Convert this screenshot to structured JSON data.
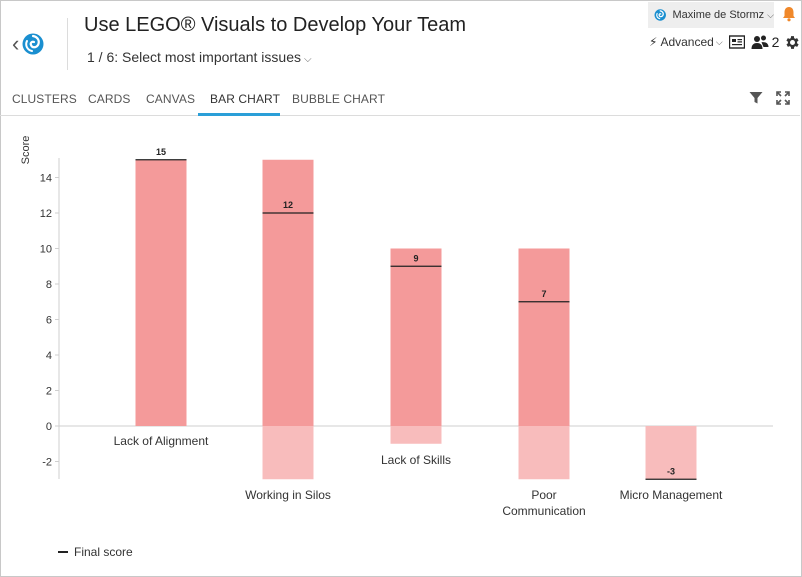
{
  "header": {
    "title": "Use LEGO® Visuals to Develop Your Team",
    "step": "1 / 6: Select most important issues",
    "user_name": "Maxime de Stormz",
    "mode": "Advanced",
    "participants": "2"
  },
  "tabs": [
    {
      "label": "CLUSTERS",
      "active": false
    },
    {
      "label": "CARDS",
      "active": false
    },
    {
      "label": "CANVAS",
      "active": false
    },
    {
      "label": "BAR CHART",
      "active": true
    },
    {
      "label": "BUBBLE CHART",
      "active": false
    }
  ],
  "colors": {
    "accent": "#2a9fd8",
    "bar_positive": "#f49a9a",
    "bar_negative": "#f8bcbc",
    "bell": "#f0882a",
    "logo": "#1a8fd0"
  },
  "icons": [
    "back-chevron-icon",
    "logo-icon",
    "bell-icon",
    "bolt-icon",
    "board-icon",
    "participants-icon",
    "gear-icon",
    "filter-icon",
    "fullscreen-icon"
  ],
  "chart_data": {
    "type": "bar",
    "ylabel": "Score",
    "ylim": [
      -3,
      15
    ],
    "yticks": [
      -2,
      0,
      2,
      4,
      6,
      8,
      10,
      12,
      14
    ],
    "categories": [
      "Lack of Alignment",
      "Working in Silos",
      "Lack of Skills",
      "Poor Communication",
      "Micro Management"
    ],
    "series": [
      {
        "name": "bar_range",
        "ranges": [
          [
            0,
            15
          ],
          [
            -3,
            15
          ],
          [
            -1,
            10
          ],
          [
            -3,
            10
          ],
          [
            -3,
            0
          ]
        ]
      },
      {
        "name": "Final score",
        "values": [
          15,
          12,
          9,
          7,
          -3
        ]
      }
    ],
    "legend": "bottom-left",
    "grid": false
  }
}
